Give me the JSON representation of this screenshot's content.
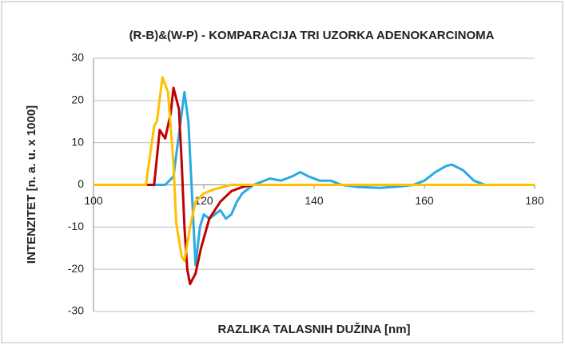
{
  "chart_data": {
    "type": "line",
    "title": "(R-B)&(W-P) - KOMPARACIJA TRI UZORKA ADENOKARCINOMA",
    "x_label": "RAZLIKA TALASNIH DUŽINA [nm]",
    "y_label": "INTENZITET [n. a. u. x 1000]",
    "xlim": [
      100,
      180
    ],
    "xticks": [
      100,
      120,
      140,
      160,
      180
    ],
    "ylim": [
      -30,
      30
    ],
    "yticks": [
      -30,
      -20,
      -10,
      0,
      10,
      20,
      30
    ],
    "grid": true,
    "series": [
      {
        "color": "#29abe2",
        "x": [
          100,
          113,
          114.5,
          115.5,
          116.5,
          117.2,
          118.5,
          119.3,
          120,
          121,
          122,
          123,
          124,
          125,
          126,
          127,
          129,
          132,
          134,
          136,
          137.5,
          139,
          141,
          143,
          145,
          148,
          152,
          156,
          158,
          160,
          162,
          164,
          165,
          167,
          169,
          171,
          180
        ],
        "values": [
          0,
          0,
          2,
          12,
          22,
          15,
          -19,
          -10,
          -7,
          -8,
          -7,
          -6,
          -8,
          -7,
          -4,
          -2,
          0,
          1.5,
          1,
          2,
          3,
          2,
          1,
          1,
          0,
          -0.5,
          -0.7,
          -0.3,
          0,
          1,
          3,
          4.5,
          4.8,
          3.5,
          1,
          0,
          0
        ]
      },
      {
        "color": "#c00000",
        "x": [
          100,
          111,
          112,
          113,
          114,
          114.5,
          115.5,
          116,
          116.5,
          117,
          117.5,
          118.5,
          119.5,
          121,
          123,
          125,
          127,
          129,
          180
        ],
        "values": [
          0,
          0,
          13,
          11,
          17,
          23,
          18,
          5,
          -10,
          -20,
          -23.5,
          -21,
          -15,
          -8,
          -4,
          -1.5,
          -0.5,
          0,
          0
        ]
      },
      {
        "color": "#ffc000",
        "x": [
          100,
          109.5,
          111,
          111.5,
          112.5,
          113.5,
          114.5,
          115,
          116,
          116.5,
          117.5,
          118.5,
          120,
          122,
          125,
          180
        ],
        "values": [
          0,
          0,
          14,
          15,
          25.5,
          22,
          5,
          -9,
          -17,
          -18,
          -10,
          -4,
          -2,
          -1,
          0,
          0
        ]
      }
    ]
  }
}
